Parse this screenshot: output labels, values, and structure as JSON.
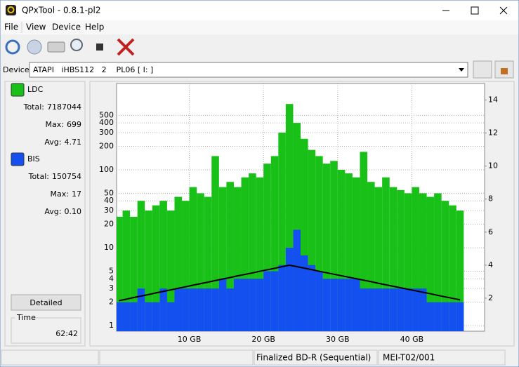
{
  "window": {
    "title": "QPxTool - 0.8.1-pl2"
  },
  "menu": [
    "File",
    "View",
    "Device",
    "Help"
  ],
  "device": {
    "label": "Device:",
    "value": "ATAPI   iHBS112   2    PL06 [ I: ]"
  },
  "panel": {
    "ldc": {
      "total_label": "Total:",
      "total": "7187044",
      "max_label": "Max:",
      "max": "699",
      "avg_label": "Avg:",
      "avg": "4.71"
    },
    "bis": {
      "total_label": "Total:",
      "total": "150754",
      "max_label": "Max:",
      "max": "17",
      "avg_label": "Avg:",
      "avg": "0.10"
    },
    "button": "Detailed",
    "time_label": "Time",
    "time": "62:42"
  },
  "status": {
    "media": "Finalized BD-R (Sequential)",
    "mid": "MEI-T02/001"
  },
  "chart_data": {
    "type": "bar",
    "log_y": true,
    "grid": true,
    "x": [
      0.5,
      1.5,
      2.5,
      3.5,
      4.5,
      5.5,
      6.5,
      7.5,
      8.5,
      9.5,
      10.5,
      11.5,
      12.5,
      13.5,
      14.5,
      15.5,
      16.5,
      17.5,
      18.5,
      19.5,
      20.5,
      21.5,
      22.5,
      23.5,
      24.5,
      25.5,
      26.5,
      27.5,
      28.5,
      29.5,
      30.5,
      31.5,
      32.5,
      33.5,
      34.5,
      35.5,
      36.5,
      37.5,
      38.5,
      39.5,
      40.5,
      41.5,
      42.5,
      43.5,
      44.5,
      45.5,
      46.5
    ],
    "xlim": [
      0,
      50
    ],
    "xticks": [
      {
        "value": 10,
        "label": "10 GB"
      },
      {
        "value": 20,
        "label": "20 GB"
      },
      {
        "value": 30,
        "label": "30 GB"
      },
      {
        "value": 40,
        "label": "40 GB"
      }
    ],
    "ylim": [
      0.85,
      1280
    ],
    "yticks": [
      1,
      2,
      3,
      4,
      5,
      10,
      20,
      30,
      40,
      50,
      100,
      200,
      300,
      400,
      500
    ],
    "y2lim": [
      0,
      15
    ],
    "y2ticks": [
      2,
      4,
      6,
      8,
      10,
      12,
      14
    ],
    "series": [
      {
        "name": "LDC",
        "color": "#18c018",
        "values": [
          25,
          30,
          25,
          40,
          30,
          35,
          40,
          30,
          45,
          40,
          60,
          50,
          45,
          150,
          60,
          70,
          60,
          80,
          90,
          80,
          120,
          150,
          300,
          699,
          400,
          250,
          180,
          150,
          120,
          130,
          100,
          90,
          80,
          170,
          70,
          60,
          80,
          60,
          55,
          50,
          60,
          50,
          45,
          50,
          40,
          35,
          30
        ]
      },
      {
        "name": "BIS",
        "color": "#1450f0",
        "values": [
          2,
          2,
          2,
          3,
          2,
          2,
          3,
          2,
          3,
          3,
          3,
          3,
          3,
          3,
          4,
          3,
          4,
          4,
          4,
          4,
          5,
          5,
          6,
          10,
          17,
          8,
          6,
          5,
          4,
          4,
          4,
          4,
          4,
          3,
          3,
          3,
          3,
          3,
          3,
          3,
          3,
          3,
          2,
          2,
          2,
          2,
          2
        ]
      },
      {
        "type": "line",
        "axis": "y2",
        "color": "#000000",
        "values": [
          1.85,
          1.94,
          2.04,
          2.13,
          2.22,
          2.32,
          2.41,
          2.5,
          2.6,
          2.69,
          2.79,
          2.88,
          2.97,
          3.07,
          3.16,
          3.25,
          3.35,
          3.44,
          3.53,
          3.63,
          3.72,
          3.81,
          3.91,
          4.0,
          3.91,
          3.82,
          3.73,
          3.63,
          3.54,
          3.45,
          3.36,
          3.27,
          3.18,
          3.09,
          3.0,
          2.9,
          2.81,
          2.72,
          2.63,
          2.54,
          2.45,
          2.36,
          2.27,
          2.17,
          2.08,
          1.99,
          1.9
        ]
      }
    ]
  }
}
